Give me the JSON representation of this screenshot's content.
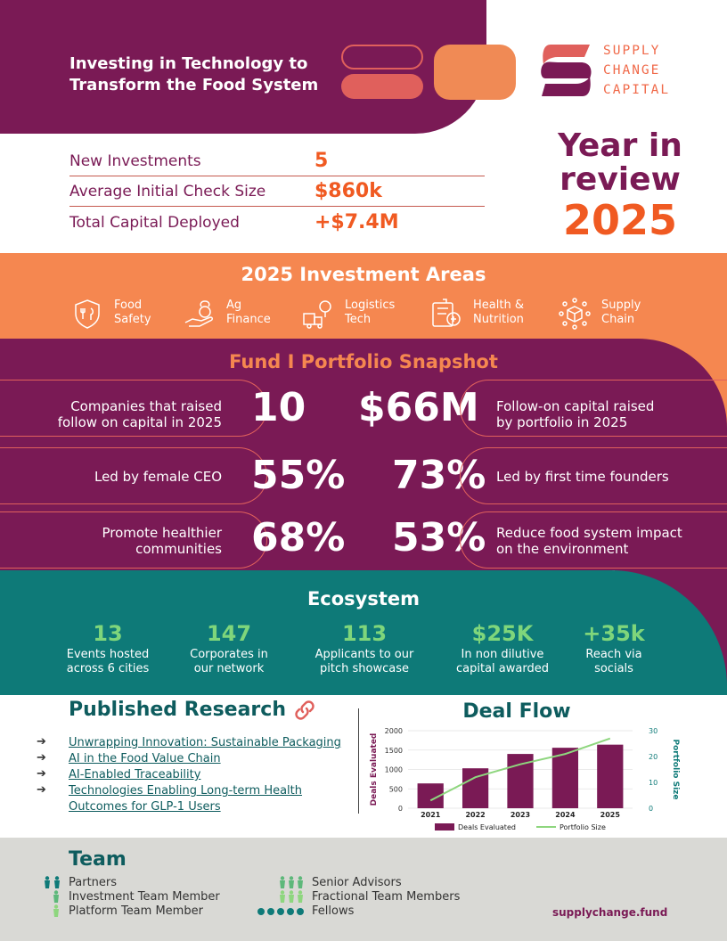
{
  "header": {
    "title": "Investing in Technology to Transform the Food System",
    "logo_lines": [
      "SUPPLY",
      "CHANGE",
      "CAPITAL"
    ]
  },
  "stats": [
    {
      "label": "New Investments",
      "value": "5"
    },
    {
      "label": "Average Initial Check Size",
      "value": "$860k"
    },
    {
      "label": "Total Capital Deployed",
      "value": "+$7.4M"
    }
  ],
  "year_review": {
    "line1": "Year in",
    "line2": "review",
    "year": "2025"
  },
  "investment_areas": {
    "title": "2025 Investment Areas",
    "items": [
      {
        "line1": "Food",
        "line2": "Safety",
        "icon": "food-safety-icon"
      },
      {
        "line1": "Ag",
        "line2": "Finance",
        "icon": "ag-finance-icon"
      },
      {
        "line1": "Logistics",
        "line2": "Tech",
        "icon": "logistics-icon"
      },
      {
        "line1": "Health &",
        "line2": "Nutrition",
        "icon": "health-nutrition-icon"
      },
      {
        "line1": "Supply",
        "line2": "Chain",
        "icon": "supply-chain-icon"
      }
    ]
  },
  "portfolio": {
    "title": "Fund I Portfolio Snapshot",
    "left": [
      {
        "value": "10",
        "line1": "Companies that raised",
        "line2": "follow on capital in 2025"
      },
      {
        "value": "55%",
        "line1": "Led by female CEO",
        "line2": ""
      },
      {
        "value": "68%",
        "line1": "Promote healthier",
        "line2": "communities"
      }
    ],
    "right": [
      {
        "value": "$66M",
        "line1": "Follow-on capital raised",
        "line2": "by portfolio in 2025"
      },
      {
        "value": "73%",
        "line1": "Led by first time founders",
        "line2": ""
      },
      {
        "value": "53%",
        "line1": "Reduce food system impact",
        "line2": "on the environment"
      }
    ]
  },
  "ecosystem": {
    "title": "Ecosystem",
    "items": [
      {
        "value": "13",
        "line1": "Events hosted",
        "line2": "across 6 cities"
      },
      {
        "value": "147",
        "line1": "Corporates in",
        "line2": "our network"
      },
      {
        "value": "113",
        "line1": "Applicants to our",
        "line2": "pitch showcase"
      },
      {
        "value": "$25K",
        "line1": "In non dilutive",
        "line2": "capital awarded"
      },
      {
        "value": "+35k",
        "line1": "Reach via",
        "line2": "socials"
      }
    ]
  },
  "research": {
    "title": "Published Research",
    "arrow": "➔",
    "links": [
      "Unwrapping Innovation: Sustainable Packaging",
      "AI in the Food Value Chain",
      "AI-Enabled Traceability",
      "Technologies Enabling Long-term Health Outcomes for GLP-1 Users"
    ],
    "link_line2": "Outcomes for GLP-1 Users",
    "link_line1": "Technologies Enabling Long-term Health"
  },
  "deal_flow_title": "Deal Flow",
  "chart_data": {
    "type": "bar",
    "categories": [
      "2021",
      "2022",
      "2023",
      "2024",
      "2025"
    ],
    "series": [
      {
        "name": "Deals Evaluated",
        "type": "bar",
        "axis": "left",
        "values": [
          640,
          1030,
          1400,
          1560,
          1640
        ],
        "color": "#7a1a55"
      },
      {
        "name": "Portfolio Size",
        "type": "line",
        "axis": "right",
        "values": [
          3,
          12,
          17,
          21,
          27
        ],
        "color": "#8ed67e"
      }
    ],
    "ylabel": "Deals Evaluated",
    "y2label": "Portfolio Size",
    "ylim": [
      0,
      2000
    ],
    "y2lim": [
      0,
      30
    ],
    "yticks": [
      "0",
      "500",
      "1000",
      "1500",
      "2000"
    ],
    "y2ticks": [
      "0",
      "10",
      "20",
      "30"
    ],
    "legend": "bottom",
    "grid": true
  },
  "team": {
    "title": "Team",
    "left": [
      "Partners",
      "Investment Team Member",
      "Platform Team Member"
    ],
    "right": [
      "Senior Advisors",
      "Fractional Team Members",
      "Fellows"
    ]
  },
  "website": "supplychange.fund",
  "colors": {
    "purple": "#7a1a55",
    "orange": "#f05a22",
    "coral": "#f58750",
    "teal": "#0e7a78",
    "green": "#7fd67b"
  }
}
